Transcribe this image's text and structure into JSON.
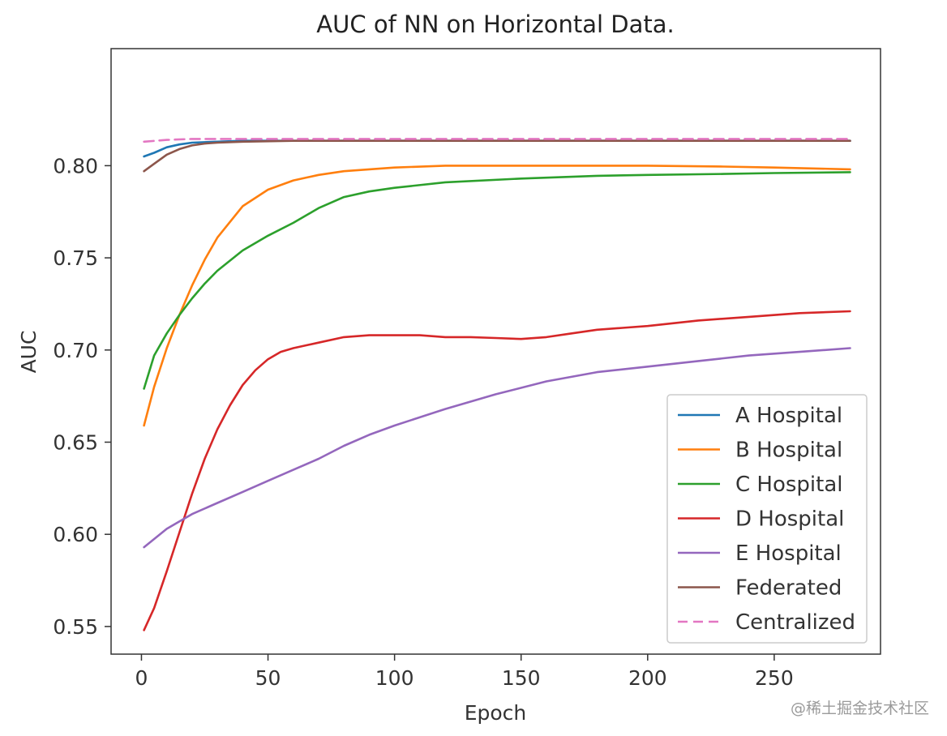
{
  "chart_data": {
    "type": "line",
    "title": "AUC of NN on Horizontal Data.",
    "xlabel": "Epoch",
    "ylabel": "AUC",
    "xlim": [
      -12,
      292
    ],
    "ylim": [
      0.535,
      0.8635
    ],
    "x_ticks": [
      0,
      50,
      100,
      150,
      200,
      250
    ],
    "x_tick_labels": [
      "0",
      "50",
      "100",
      "150",
      "200",
      "250"
    ],
    "y_ticks": [
      0.55,
      0.6,
      0.65,
      0.7,
      0.75,
      0.8
    ],
    "y_tick_labels": [
      "0.55",
      "0.60",
      "0.65",
      "0.70",
      "0.75",
      "0.80"
    ],
    "grid": false,
    "legend_position": "lower-right",
    "series": [
      {
        "name": "A Hospital",
        "color": "#1f77b4",
        "style": "solid",
        "x": [
          1,
          5,
          10,
          15,
          20,
          30,
          40,
          60,
          100,
          150,
          200,
          250,
          280
        ],
        "y": [
          0.805,
          0.807,
          0.81,
          0.8115,
          0.8125,
          0.813,
          0.8135,
          0.8135,
          0.8135,
          0.8135,
          0.8135,
          0.8135,
          0.8135
        ]
      },
      {
        "name": "B Hospital",
        "color": "#ff7f0e",
        "style": "solid",
        "x": [
          1,
          5,
          10,
          15,
          20,
          25,
          30,
          40,
          50,
          60,
          70,
          80,
          90,
          100,
          120,
          150,
          180,
          200,
          230,
          250,
          280
        ],
        "y": [
          0.659,
          0.68,
          0.701,
          0.719,
          0.735,
          0.749,
          0.761,
          0.778,
          0.787,
          0.792,
          0.795,
          0.797,
          0.798,
          0.799,
          0.8,
          0.8,
          0.8,
          0.8,
          0.7995,
          0.799,
          0.798
        ]
      },
      {
        "name": "C Hospital",
        "color": "#2ca02c",
        "style": "solid",
        "x": [
          1,
          5,
          10,
          15,
          20,
          25,
          30,
          40,
          50,
          60,
          70,
          80,
          90,
          100,
          120,
          150,
          180,
          200,
          230,
          250,
          280
        ],
        "y": [
          0.679,
          0.697,
          0.709,
          0.719,
          0.728,
          0.736,
          0.743,
          0.754,
          0.762,
          0.769,
          0.777,
          0.783,
          0.786,
          0.788,
          0.791,
          0.793,
          0.7945,
          0.795,
          0.7955,
          0.796,
          0.7965
        ]
      },
      {
        "name": "D Hospital",
        "color": "#d62728",
        "style": "solid",
        "x": [
          1,
          5,
          10,
          15,
          20,
          25,
          30,
          35,
          40,
          45,
          50,
          55,
          60,
          70,
          80,
          90,
          100,
          110,
          120,
          130,
          140,
          150,
          160,
          170,
          180,
          190,
          200,
          220,
          240,
          260,
          280
        ],
        "y": [
          0.548,
          0.56,
          0.58,
          0.601,
          0.622,
          0.641,
          0.657,
          0.67,
          0.681,
          0.689,
          0.695,
          0.699,
          0.701,
          0.704,
          0.707,
          0.708,
          0.708,
          0.708,
          0.707,
          0.707,
          0.7065,
          0.706,
          0.707,
          0.709,
          0.711,
          0.712,
          0.713,
          0.716,
          0.718,
          0.72,
          0.721
        ]
      },
      {
        "name": "E Hospital",
        "color": "#9467bd",
        "style": "solid",
        "x": [
          1,
          10,
          20,
          30,
          40,
          50,
          60,
          70,
          80,
          90,
          100,
          120,
          140,
          160,
          180,
          200,
          220,
          240,
          260,
          280
        ],
        "y": [
          0.593,
          0.603,
          0.611,
          0.617,
          0.623,
          0.629,
          0.635,
          0.641,
          0.648,
          0.654,
          0.659,
          0.668,
          0.676,
          0.683,
          0.688,
          0.691,
          0.694,
          0.697,
          0.699,
          0.701
        ]
      },
      {
        "name": "Federated",
        "color": "#8c564b",
        "style": "solid",
        "x": [
          1,
          5,
          10,
          15,
          20,
          25,
          30,
          40,
          60,
          100,
          150,
          200,
          250,
          280
        ],
        "y": [
          0.797,
          0.801,
          0.806,
          0.809,
          0.811,
          0.812,
          0.8125,
          0.813,
          0.8135,
          0.8135,
          0.8135,
          0.8135,
          0.8135,
          0.8135
        ]
      },
      {
        "name": "Centralized",
        "color": "#e377c2",
        "style": "dashed",
        "x": [
          1,
          10,
          20,
          40,
          100,
          200,
          280
        ],
        "y": [
          0.813,
          0.814,
          0.8145,
          0.8145,
          0.8145,
          0.8145,
          0.8145
        ]
      }
    ]
  },
  "watermark": "@稀土掘金技术社区"
}
